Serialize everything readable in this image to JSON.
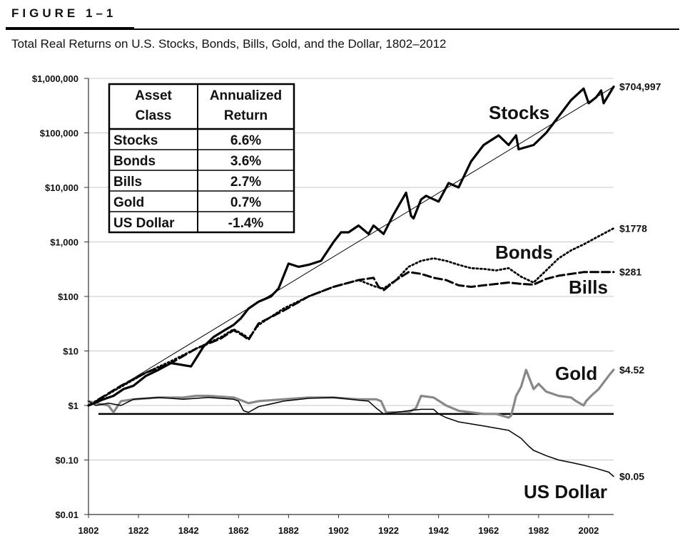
{
  "figure_label": "FIGURE 1–1",
  "subtitle": "Total Real Returns on U.S. Stocks, Bonds, Bills, Gold, and the Dollar, 1802–2012",
  "chart_data": {
    "type": "line",
    "title": "Total Real Returns on U.S. Stocks, Bonds, Bills, Gold, and the Dollar, 1802–2012",
    "y_scale": "log",
    "ylim": [
      0.01,
      1000000
    ],
    "xlim": [
      1802,
      2012
    ],
    "y_ticks": [
      {
        "value": 1000000,
        "label": "$1,000,000"
      },
      {
        "value": 100000,
        "label": "$100,000"
      },
      {
        "value": 10000,
        "label": "$10,000"
      },
      {
        "value": 1000,
        "label": "$1,000"
      },
      {
        "value": 100,
        "label": "$100"
      },
      {
        "value": 10,
        "label": "$10"
      },
      {
        "value": 1,
        "label": "$1"
      },
      {
        "value": 0.1,
        "label": "$0.10"
      },
      {
        "value": 0.01,
        "label": "$0.01"
      }
    ],
    "x_ticks": [
      "1802",
      "1822",
      "1842",
      "1862",
      "1882",
      "1902",
      "1922",
      "1942",
      "1962",
      "1982",
      "2002"
    ],
    "grid": true,
    "series": [
      {
        "name": "Stocks",
        "end_label": "$704,997",
        "style": "solid-thick",
        "color": "#000000",
        "x": [
          1802,
          1808,
          1812,
          1816,
          1820,
          1825,
          1830,
          1835,
          1840,
          1843,
          1848,
          1852,
          1857,
          1860,
          1863,
          1866,
          1870,
          1875,
          1878,
          1882,
          1886,
          1890,
          1895,
          1900,
          1903,
          1906,
          1910,
          1914,
          1916,
          1920,
          1924,
          1929,
          1931,
          1932,
          1935,
          1937,
          1942,
          1946,
          1950,
          1955,
          1960,
          1966,
          1970,
          1973,
          1974,
          1980,
          1985,
          1990,
          1995,
          2000,
          2002,
          2005,
          2007,
          2008,
          2012
        ],
        "y": [
          1,
          1.3,
          1.5,
          2,
          2.3,
          3.5,
          4.5,
          6,
          5.5,
          5.2,
          12,
          18,
          25,
          30,
          40,
          60,
          80,
          100,
          140,
          400,
          350,
          380,
          450,
          1000,
          1500,
          1500,
          2000,
          1400,
          2000,
          1400,
          3200,
          8000,
          3000,
          2700,
          6000,
          7000,
          5500,
          12000,
          10000,
          30000,
          60000,
          90000,
          60000,
          90000,
          50000,
          60000,
          100000,
          200000,
          400000,
          650000,
          350000,
          450000,
          600000,
          350000,
          704997
        ]
      },
      {
        "name": "Bonds",
        "end_label": "$1778",
        "style": "dotted",
        "color": "#000000",
        "x": [
          1802,
          1815,
          1825,
          1835,
          1845,
          1855,
          1860,
          1864,
          1866,
          1870,
          1880,
          1890,
          1900,
          1910,
          1917,
          1920,
          1925,
          1930,
          1935,
          1940,
          1945,
          1950,
          1955,
          1960,
          1965,
          1970,
          1975,
          1980,
          1985,
          1990,
          1995,
          2000,
          2005,
          2012
        ],
        "y": [
          1,
          2.2,
          4,
          6.5,
          11,
          18,
          25,
          20,
          17,
          30,
          60,
          100,
          150,
          200,
          150,
          140,
          200,
          350,
          450,
          500,
          450,
          380,
          330,
          320,
          300,
          330,
          230,
          180,
          300,
          500,
          700,
          900,
          1200,
          1778
        ]
      },
      {
        "name": "Bills",
        "end_label": "$281",
        "style": "dashed",
        "color": "#000000",
        "x": [
          1802,
          1815,
          1825,
          1835,
          1845,
          1855,
          1860,
          1864,
          1866,
          1870,
          1880,
          1890,
          1900,
          1910,
          1916,
          1918,
          1920,
          1925,
          1930,
          1935,
          1940,
          1945,
          1950,
          1955,
          1960,
          1970,
          1975,
          1980,
          1985,
          1990,
          2000,
          2012
        ],
        "y": [
          1,
          2.3,
          4,
          6,
          11,
          17,
          24,
          19,
          16,
          32,
          55,
          100,
          150,
          200,
          220,
          150,
          130,
          200,
          280,
          260,
          220,
          200,
          160,
          150,
          160,
          180,
          170,
          165,
          210,
          240,
          280,
          281
        ]
      },
      {
        "name": "Gold",
        "end_label": "$4.52",
        "style": "solid-gray",
        "color": "#888888",
        "x": [
          1802,
          1805,
          1810,
          1812,
          1815,
          1820,
          1830,
          1840,
          1845,
          1850,
          1860,
          1863,
          1866,
          1870,
          1880,
          1890,
          1900,
          1910,
          1914,
          1917,
          1919,
          1921,
          1925,
          1930,
          1933,
          1935,
          1940,
          1945,
          1950,
          1955,
          1960,
          1965,
          1970,
          1971,
          1973,
          1975,
          1977,
          1980,
          1982,
          1985,
          1990,
          1995,
          1997,
          2000,
          2001,
          2003,
          2006,
          2010,
          2012
        ],
        "y": [
          1.2,
          1.1,
          1,
          0.75,
          1.2,
          1.3,
          1.4,
          1.4,
          1.5,
          1.5,
          1.4,
          1.25,
          1.1,
          1.2,
          1.3,
          1.4,
          1.4,
          1.3,
          1.3,
          1.3,
          1.2,
          0.75,
          0.75,
          0.75,
          0.9,
          1.5,
          1.4,
          1,
          0.8,
          0.75,
          0.7,
          0.7,
          0.6,
          0.65,
          1.5,
          2.2,
          4.5,
          2,
          2.5,
          1.8,
          1.5,
          1.4,
          1.2,
          1,
          1.2,
          1.5,
          2,
          3.5,
          4.52
        ]
      },
      {
        "name": "US Dollar",
        "end_label": "$0.05",
        "style": "solid-thin",
        "color": "#000000",
        "x": [
          1802,
          1805,
          1810,
          1815,
          1820,
          1830,
          1840,
          1850,
          1860,
          1862,
          1864,
          1866,
          1870,
          1880,
          1890,
          1900,
          1910,
          1914,
          1917,
          1920,
          1925,
          1930,
          1935,
          1940,
          1942,
          1945,
          1950,
          1960,
          1970,
          1975,
          1978,
          1980,
          1985,
          1990,
          1995,
          2000,
          2005,
          2010,
          2012
        ],
        "y": [
          1.2,
          1,
          1.1,
          1,
          1.3,
          1.4,
          1.3,
          1.4,
          1.3,
          1.2,
          0.8,
          0.75,
          0.95,
          1.2,
          1.35,
          1.4,
          1.25,
          1.2,
          0.9,
          0.7,
          0.75,
          0.8,
          0.85,
          0.85,
          0.7,
          0.6,
          0.5,
          0.42,
          0.35,
          0.25,
          0.18,
          0.15,
          0.12,
          0.1,
          0.09,
          0.08,
          0.07,
          0.06,
          0.05
        ]
      }
    ],
    "reference_lines": [
      {
        "type": "trend",
        "x": [
          1802,
          2012
        ],
        "y": [
          1,
          704997
        ],
        "color": "#000000"
      },
      {
        "type": "horizontal",
        "x": [
          1806,
          2012
        ],
        "y": [
          0.7,
          0.7
        ],
        "color": "#000000"
      }
    ],
    "series_labels": [
      "Stocks",
      "Bonds",
      "Bills",
      "Gold",
      "US Dollar"
    ],
    "table": {
      "headers": [
        [
          "Asset",
          "Class"
        ],
        [
          "Annualized",
          "Return"
        ]
      ],
      "rows": [
        [
          "Stocks",
          "6.6%"
        ],
        [
          "Bonds",
          "3.6%"
        ],
        [
          "Bills",
          "2.7%"
        ],
        [
          "Gold",
          "0.7%"
        ],
        [
          "US Dollar",
          "-1.4%"
        ]
      ]
    }
  }
}
